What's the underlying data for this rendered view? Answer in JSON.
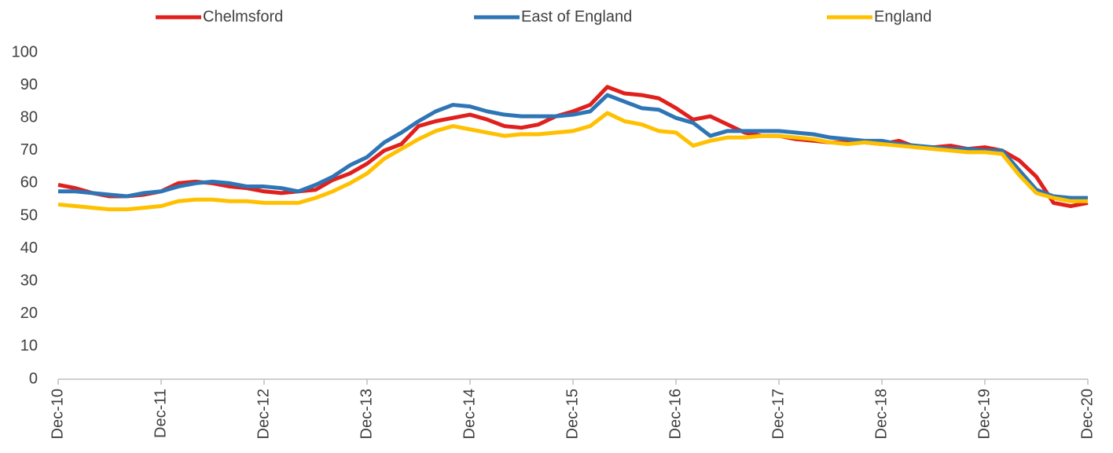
{
  "chart_data": {
    "type": "line",
    "categories": [
      "Dec-10",
      null,
      null,
      null,
      null,
      null,
      "Dec-11",
      null,
      null,
      null,
      null,
      null,
      "Dec-12",
      null,
      null,
      null,
      null,
      null,
      "Dec-13",
      null,
      null,
      null,
      null,
      null,
      "Dec-14",
      null,
      null,
      null,
      null,
      null,
      "Dec-15",
      null,
      null,
      null,
      null,
      null,
      "Dec-16",
      null,
      null,
      null,
      null,
      null,
      "Dec-17",
      null,
      null,
      null,
      null,
      null,
      "Dec-18",
      null,
      null,
      null,
      null,
      null,
      "Dec-19",
      null,
      null,
      null,
      null,
      null,
      "Dec-20"
    ],
    "series": [
      {
        "name": "Chelmsford",
        "color": "#e0201c",
        "values": [
          59.5,
          58.5,
          57,
          56,
          56,
          56.5,
          57.5,
          60,
          60.5,
          60,
          59,
          58.5,
          57.5,
          57,
          57.5,
          58,
          61,
          63,
          66,
          70,
          72,
          77.5,
          79,
          80,
          81,
          79.5,
          77.5,
          77,
          78,
          80.5,
          82,
          84,
          89.5,
          87.5,
          87,
          86,
          83,
          79.5,
          80.5,
          78,
          75.5,
          74.5,
          74.5,
          73.5,
          73,
          72.5,
          72.5,
          72.5,
          72,
          73,
          71,
          71,
          71.5,
          70.5,
          71,
          70,
          67,
          62,
          54,
          53,
          54
        ]
      },
      {
        "name": "East of England",
        "color": "#2e75b6",
        "values": [
          57.5,
          57.5,
          57,
          56.5,
          56,
          57,
          57.5,
          59,
          60,
          60.5,
          60,
          59,
          59,
          58.5,
          57.5,
          59.5,
          62,
          65.5,
          68,
          72.5,
          75.5,
          79,
          82,
          84,
          83.5,
          82,
          81,
          80.5,
          80.5,
          80.5,
          81,
          82,
          87,
          85,
          83,
          82.5,
          80,
          78.5,
          74.5,
          76,
          76,
          76,
          76,
          75.5,
          75,
          74,
          73.5,
          73,
          73,
          72,
          71.5,
          71,
          70.5,
          70.5,
          70,
          70,
          64,
          58,
          56,
          55.5,
          55.5
        ]
      },
      {
        "name": "England",
        "color": "#ffc000",
        "values": [
          53.5,
          53,
          52.5,
          52,
          52,
          52.5,
          53,
          54.5,
          55,
          55,
          54.5,
          54.5,
          54,
          54,
          54,
          55.5,
          57.5,
          60,
          63,
          67.5,
          70.5,
          73.5,
          76,
          77.5,
          76.5,
          75.5,
          74.5,
          75,
          75,
          75.5,
          76,
          77.5,
          81.5,
          79,
          78,
          76,
          75.5,
          71.5,
          73,
          74,
          74,
          74.5,
          74.5,
          74,
          73.5,
          72.5,
          72,
          72.5,
          72,
          71.5,
          71,
          70.5,
          70,
          69.5,
          69.5,
          69,
          62.5,
          57,
          55.5,
          54.5,
          54.5
        ]
      }
    ],
    "ylim": [
      0,
      100
    ],
    "yticks": [
      0,
      10,
      20,
      30,
      40,
      50,
      60,
      70,
      80,
      90,
      100
    ],
    "grid": false
  }
}
